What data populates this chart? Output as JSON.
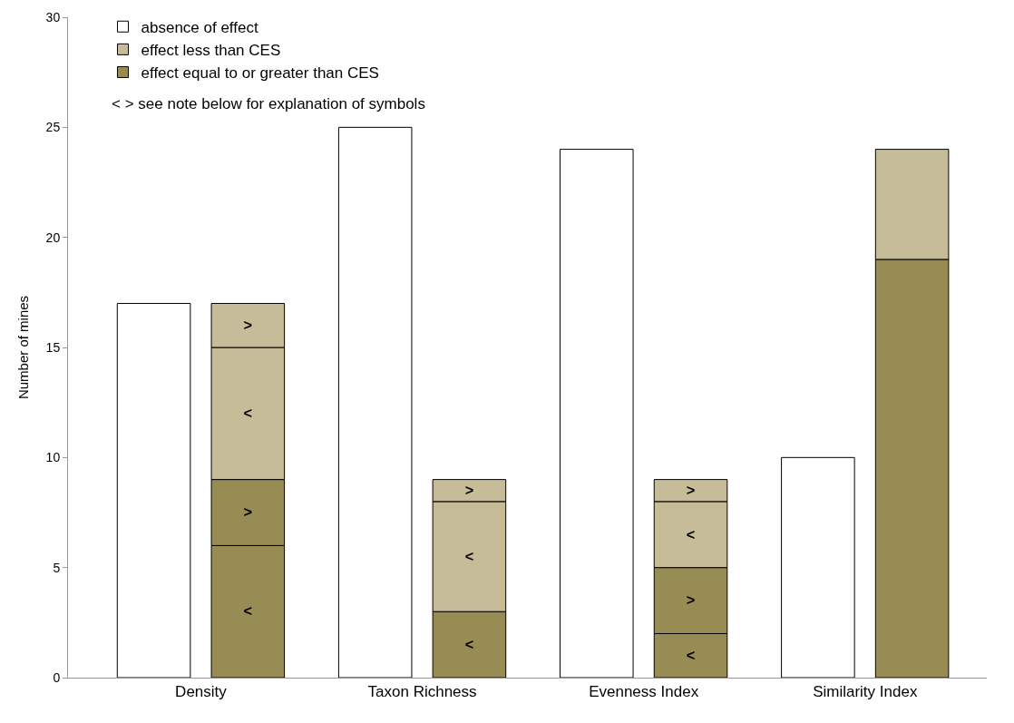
{
  "chart_data": {
    "type": "bar",
    "ylabel": "Number of mines",
    "categories": [
      "Density",
      "Taxon Richness",
      "Evenness Index",
      "Similarity Index"
    ],
    "series": [
      {
        "name": "absence of effect",
        "color": "#ffffff",
        "values": [
          17,
          25,
          24,
          10
        ]
      },
      {
        "name": "effect equal to or greater than CES",
        "color": "#968c54",
        "values": [
          6,
          3,
          2,
          19
        ],
        "base": [
          0,
          0,
          0,
          0
        ],
        "value_labels": [
          "<",
          "<",
          "<",
          null
        ]
      },
      {
        "color": "#968c54",
        "values": [
          3,
          null,
          3,
          null
        ],
        "base": [
          6,
          null,
          2,
          null
        ],
        "value_labels": [
          ">",
          null,
          ">",
          null
        ]
      },
      {
        "name": "effect less than CES",
        "color": "#c6bd98",
        "values": [
          6,
          5,
          3,
          5
        ],
        "base": [
          9,
          3,
          5,
          19
        ],
        "value_labels": [
          "<",
          "<",
          "<",
          null
        ]
      },
      {
        "color": "#c6bd98",
        "values": [
          2,
          1,
          1,
          null
        ],
        "base": [
          15,
          8,
          8,
          null
        ],
        "value_labels": [
          ">",
          ">",
          ">",
          null
        ]
      }
    ],
    "ylim": [
      0,
      30
    ],
    "yticks": [
      0,
      5,
      10,
      15,
      20,
      25,
      30
    ],
    "legend": "top left",
    "annotations": [
      "< > see note below for explanation of symbols"
    ]
  }
}
